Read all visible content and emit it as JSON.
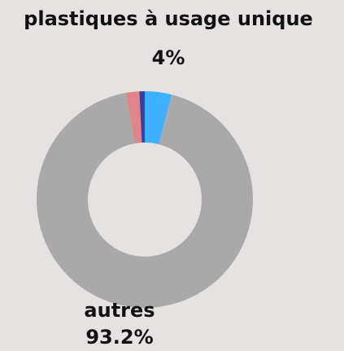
{
  "chart_data": {
    "type": "pie",
    "categories": [
      "plastiques à usage unique",
      "autres",
      null,
      null
    ],
    "values": [
      4,
      93.2,
      2,
      0.8
    ],
    "value_labels": [
      "4%",
      "93.2%",
      null,
      null
    ],
    "colors": [
      "#3fb0ff",
      "#a9a9a9",
      "#e0868a",
      "#3b3f99"
    ]
  }
}
